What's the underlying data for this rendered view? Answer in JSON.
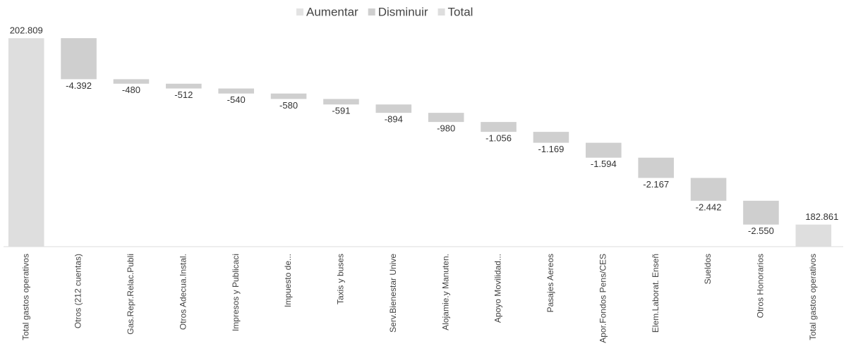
{
  "chart_data": {
    "type": "waterfall",
    "categories": [
      "Total gastos operativos",
      "Otros (212 cuentas)",
      "Gas.Repr.Relac.Publi",
      "Otros Adecua.Instal.",
      "Impresos y Publicaci",
      "Impuesto de...",
      "Taxis y buses",
      "Serv.Bienestar Unive",
      "Alojamie.y Manuten.",
      "Apoyo Movilidad...",
      "Pasajes Aereos",
      "Apor.Fondos Pens/CES",
      "Elem.Laborat. Enseñ",
      "Sueldos",
      "Otros Honorarios",
      "Total gastos operativos"
    ],
    "series": [
      {
        "name": "Aumentar",
        "color": "#e3e3e3",
        "values": [
          null,
          null,
          null,
          null,
          null,
          null,
          null,
          null,
          null,
          null,
          null,
          null,
          null,
          null,
          null,
          null
        ]
      },
      {
        "name": "Disminuir",
        "color": "#cfcfcf",
        "values": [
          null,
          -4392,
          -480,
          -512,
          -540,
          -580,
          -591,
          -894,
          -980,
          -1056,
          -1169,
          -1594,
          -2167,
          -2442,
          -2550,
          null
        ],
        "value_labels": [
          null,
          "-4.392",
          "-480",
          "-512",
          "-540",
          "-580",
          "-591",
          "-894",
          "-980",
          "-1.056",
          "-1.169",
          "-1.594",
          "-2.167",
          "-2.442",
          "-2.550",
          null
        ]
      },
      {
        "name": "Total",
        "color": "#dedede",
        "values": [
          202809,
          null,
          null,
          null,
          null,
          null,
          null,
          null,
          null,
          null,
          null,
          null,
          null,
          null,
          null,
          182861
        ],
        "value_labels": [
          "202.809",
          null,
          null,
          null,
          null,
          null,
          null,
          null,
          null,
          null,
          null,
          null,
          null,
          null,
          null,
          "182.861"
        ]
      }
    ],
    "ylim": [
      180500,
      203500
    ],
    "legend": "top"
  }
}
